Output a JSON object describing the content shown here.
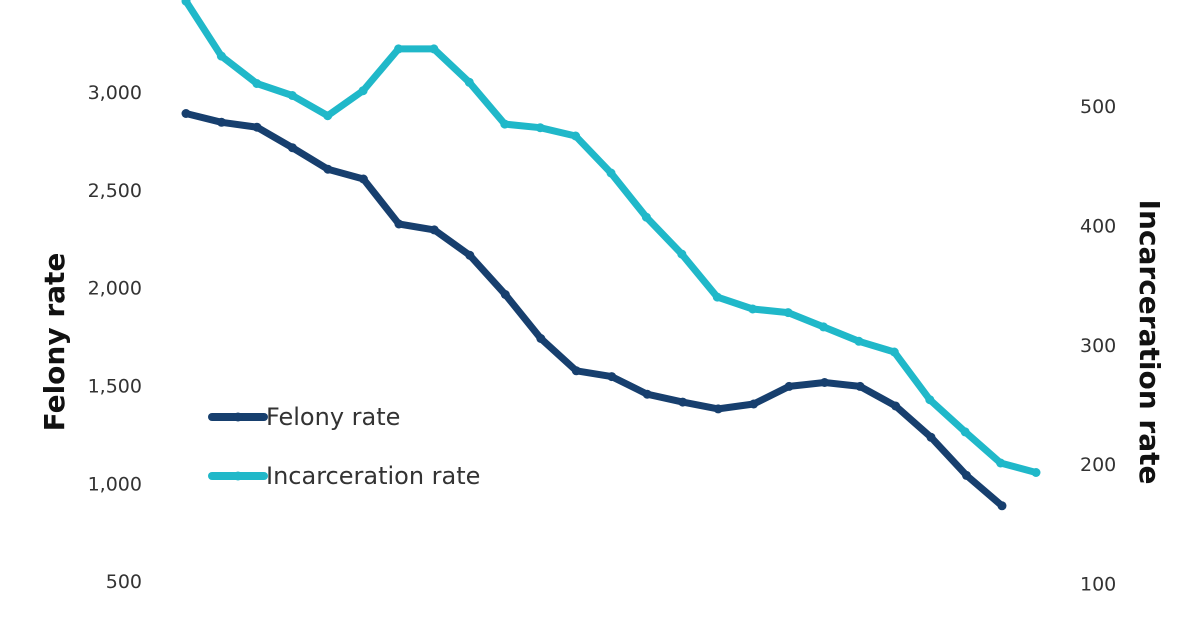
{
  "chart_data": {
    "type": "line",
    "title": "",
    "left_axis": {
      "label": "Felony rate",
      "ticks": [
        500,
        1000,
        1500,
        2000,
        2500,
        3000
      ],
      "tick_labels": [
        "500",
        "1,000",
        "1,500",
        "2,000",
        "2,500",
        "3,000"
      ],
      "range": [
        250,
        3470
      ]
    },
    "right_axis": {
      "label": "Incarceration rate",
      "ticks": [
        100,
        200,
        300,
        400,
        500
      ],
      "tick_labels": [
        "100",
        "200",
        "300",
        "400",
        "500"
      ],
      "range": [
        61,
        589
      ]
    },
    "grid": false,
    "legend": {
      "placement": "center-left"
    },
    "series": [
      {
        "name": "Felony rate",
        "axis": "left",
        "color": "#173f6e",
        "values": [
          2890,
          2845,
          2820,
          2715,
          2605,
          2555,
          2325,
          2295,
          2165,
          1965,
          1740,
          1575,
          1545,
          1455,
          1415,
          1380,
          1405,
          1495,
          1515,
          1495,
          1395,
          1235,
          1040,
          885
        ]
      },
      {
        "name": "Incarceration rate",
        "axis": "right",
        "color": "#20b8c9",
        "values": [
          588,
          542,
          519,
          509,
          492,
          513,
          548,
          548,
          520,
          485,
          482,
          475,
          444,
          407,
          376,
          340,
          330,
          327,
          315,
          303,
          294,
          254,
          227,
          201,
          193
        ]
      }
    ]
  }
}
